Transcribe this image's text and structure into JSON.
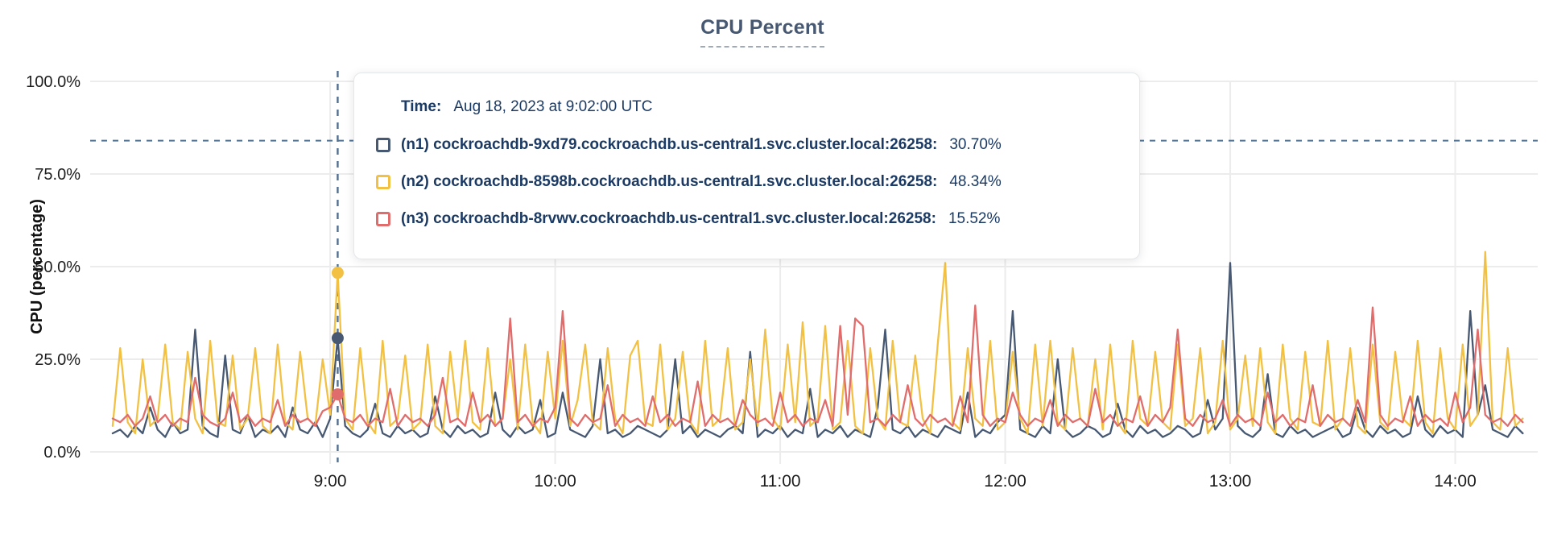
{
  "title": "CPU Percent",
  "y_axis_label": "CPU (percentage)",
  "colors": {
    "title": "#475872",
    "tooltip_text": "#1B3A64",
    "series_n1": "#475872",
    "series_n2": "#F2C144",
    "series_n3": "#E06C6C",
    "gridline": "#ECECEC",
    "crosshair": "#52708F",
    "axis_text": "#1D1D1D"
  },
  "tooltip": {
    "time_label": "Time:",
    "time_value": "Aug 18, 2023 at 9:02:00 UTC",
    "rows": [
      {
        "label": "(n1) cockroachdb-9xd79.cockroachdb.us-central1.svc.cluster.local:26258:",
        "value": "30.70%",
        "color": "#475872"
      },
      {
        "label": "(n2) cockroachdb-8598b.cockroachdb.us-central1.svc.cluster.local:26258:",
        "value": "48.34%",
        "color": "#F2C144"
      },
      {
        "label": "(n3) cockroachdb-8rvwv.cockroachdb.us-central1.svc.cluster.local:26258:",
        "value": "15.52%",
        "color": "#E06C6C"
      }
    ]
  },
  "chart_data": {
    "type": "line",
    "title": "CPU Percent",
    "xlabel": "",
    "ylabel": "CPU (percentage)",
    "ylim": [
      0,
      100
    ],
    "grid": true,
    "legend_position": "hover-tooltip",
    "y_ticks": [
      {
        "v": 0,
        "label": "0.0%"
      },
      {
        "v": 25,
        "label": "25.0%"
      },
      {
        "v": 50,
        "label": "50.0%"
      },
      {
        "v": 75,
        "label": "75.0%"
      },
      {
        "v": 100,
        "label": "100.0%"
      }
    ],
    "x_ticks": [
      {
        "m": 540,
        "label": "9:00"
      },
      {
        "m": 600,
        "label": "10:00"
      },
      {
        "m": 660,
        "label": "11:00"
      },
      {
        "m": 720,
        "label": "12:00"
      },
      {
        "m": 780,
        "label": "13:00"
      },
      {
        "m": 840,
        "label": "14:00"
      }
    ],
    "x_domain_minutes": [
      476,
      862
    ],
    "x_start_min": 482,
    "x_step_min": 2,
    "hover": {
      "minute": 542,
      "time_text": "Aug 18, 2023 at 9:02:00 UTC",
      "crosshair_y_percent": 84,
      "values_percent": {
        "n1": 30.7,
        "n2": 48.34,
        "n3": 15.52
      }
    },
    "series": [
      {
        "name": "(n1) cockroachdb-9xd79.cockroachdb.us-central1.svc.cluster.local:26258",
        "color": "#475872",
        "values": [
          5,
          6,
          4,
          7,
          5,
          12,
          6,
          4,
          8,
          5,
          6,
          33,
          7,
          5,
          4,
          26,
          6,
          5,
          10,
          4,
          6,
          5,
          7,
          4,
          12,
          6,
          5,
          8,
          4,
          9,
          30.7,
          7,
          5,
          4,
          6,
          13,
          5,
          4,
          7,
          5,
          6,
          4,
          5,
          15,
          6,
          4,
          7,
          5,
          6,
          4,
          5,
          16,
          6,
          4,
          7,
          5,
          6,
          14,
          4,
          5,
          16,
          6,
          5,
          4,
          7,
          25,
          5,
          6,
          4,
          5,
          7,
          6,
          5,
          4,
          6,
          25,
          5,
          7,
          4,
          6,
          5,
          4,
          6,
          7,
          5,
          27,
          4,
          6,
          5,
          7,
          4,
          6,
          5,
          17,
          4,
          6,
          5,
          7,
          4,
          6,
          5,
          4,
          12,
          33,
          6,
          5,
          7,
          4,
          6,
          5,
          4,
          7,
          6,
          5,
          16,
          4,
          6,
          5,
          8,
          10,
          38,
          6,
          5,
          4,
          7,
          5,
          25,
          6,
          4,
          5,
          7,
          6,
          4,
          5,
          13,
          6,
          4,
          7,
          5,
          6,
          4,
          5,
          7,
          6,
          4,
          5,
          14,
          6,
          9,
          51,
          7,
          5,
          4,
          6,
          21,
          5,
          4,
          7,
          5,
          6,
          4,
          5,
          6,
          7,
          4,
          5,
          12,
          6,
          4,
          7,
          5,
          6,
          4,
          5,
          15,
          6,
          4,
          7,
          5,
          6,
          4,
          38,
          10,
          18,
          6,
          5,
          4,
          7,
          5
        ]
      },
      {
        "name": "(n2) cockroachdb-8598b.cockroachdb.us-central1.svc.cluster.local:26258",
        "color": "#F2C144",
        "values": [
          7,
          28,
          8,
          5,
          25,
          7,
          9,
          29,
          8,
          6,
          27,
          9,
          5,
          30,
          8,
          7,
          26,
          6,
          9,
          28,
          7,
          5,
          29,
          8,
          6,
          27,
          9,
          7,
          25,
          10,
          48.34,
          9,
          6,
          28,
          8,
          5,
          30,
          7,
          9,
          26,
          6,
          8,
          29,
          7,
          5,
          27,
          9,
          30,
          8,
          6,
          28,
          7,
          9,
          25,
          6,
          29,
          8,
          5,
          27,
          9,
          30,
          7,
          14,
          29,
          8,
          6,
          28,
          9,
          5,
          26,
          30,
          8,
          7,
          29,
          6,
          9,
          27,
          8,
          5,
          30,
          7,
          9,
          28,
          6,
          8,
          25,
          7,
          33,
          9,
          6,
          29,
          8,
          35,
          7,
          9,
          34,
          6,
          8,
          30,
          7,
          5,
          28,
          9,
          6,
          30,
          8,
          7,
          26,
          9,
          5,
          29,
          51,
          8,
          6,
          28,
          9,
          7,
          30,
          6,
          8,
          27,
          9,
          5,
          29,
          7,
          30,
          8,
          6,
          28,
          9,
          7,
          25,
          6,
          29,
          8,
          5,
          30,
          9,
          7,
          27,
          8,
          6,
          29,
          7,
          9,
          28,
          5,
          8,
          30,
          6,
          9,
          26,
          7,
          28,
          8,
          5,
          29,
          9,
          6,
          27,
          8,
          7,
          30,
          6,
          9,
          28,
          7,
          5,
          29,
          8,
          6,
          27,
          9,
          7,
          30,
          8,
          5,
          28,
          9,
          6,
          29,
          7,
          10,
          54,
          8,
          6,
          28,
          7,
          9
        ]
      },
      {
        "name": "(n3) cockroachdb-8rvwv.cockroachdb.us-central1.svc.cluster.local:26258",
        "color": "#E06C6C",
        "values": [
          9,
          8,
          10,
          7,
          9,
          15,
          8,
          10,
          7,
          9,
          8,
          20,
          10,
          8,
          7,
          9,
          16,
          8,
          10,
          7,
          9,
          8,
          14,
          7,
          10,
          8,
          9,
          7,
          11,
          12,
          15.52,
          9,
          8,
          10,
          7,
          9,
          8,
          17,
          7,
          10,
          8,
          9,
          7,
          10,
          20,
          8,
          9,
          7,
          16,
          8,
          10,
          7,
          9,
          36,
          8,
          10,
          7,
          9,
          8,
          12,
          38,
          9,
          7,
          10,
          8,
          9,
          18,
          7,
          10,
          8,
          9,
          7,
          15,
          8,
          10,
          7,
          9,
          8,
          19,
          7,
          10,
          8,
          9,
          7,
          14,
          10,
          8,
          9,
          7,
          16,
          8,
          10,
          7,
          9,
          8,
          14,
          7,
          34,
          10,
          36,
          34,
          8,
          9,
          7,
          10,
          8,
          18,
          9,
          7,
          10,
          8,
          9,
          7,
          15,
          8,
          39.5,
          10,
          7,
          9,
          8,
          16,
          10,
          7,
          9,
          8,
          14,
          7,
          10,
          8,
          9,
          7,
          17,
          8,
          10,
          7,
          9,
          8,
          15,
          7,
          10,
          8,
          12,
          33,
          9,
          7,
          10,
          8,
          9,
          14,
          7,
          10,
          8,
          9,
          7,
          16,
          8,
          10,
          7,
          9,
          8,
          18,
          7,
          10,
          8,
          9,
          7,
          14,
          8,
          39,
          10,
          7,
          9,
          8,
          15,
          7,
          10,
          8,
          9,
          7,
          16,
          8,
          12,
          33,
          10,
          8,
          9,
          7,
          10,
          8
        ]
      }
    ]
  }
}
